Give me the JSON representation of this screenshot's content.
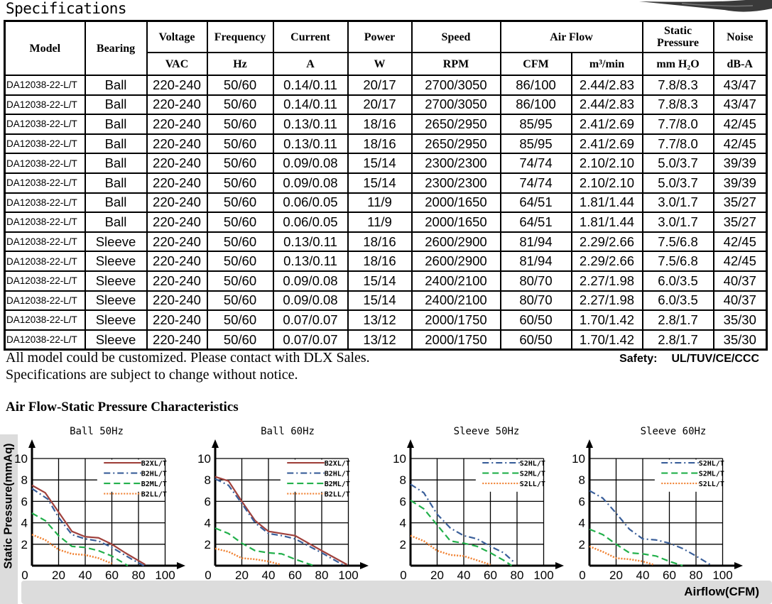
{
  "header": {
    "title": "Specifications"
  },
  "table": {
    "group_headers": [
      "Model",
      "Bearing",
      "Voltage",
      "Frequency",
      "Current",
      "Power",
      "Speed",
      "Air Flow",
      "Static Pressure",
      "Noise"
    ],
    "units": [
      "VAC",
      "Hz",
      "A",
      "W",
      "RPM",
      "CFM",
      "m³/min",
      "mm H₂O",
      "dB-A"
    ],
    "rows": [
      [
        "DA12038-22-L/T",
        "Ball",
        "220-240",
        "50/60",
        "0.14/0.11",
        "20/17",
        "2700/3050",
        "86/100",
        "2.44/2.83",
        "7.8/8.3",
        "43/47"
      ],
      [
        "DA12038-22-L/T",
        "Ball",
        "220-240",
        "50/60",
        "0.14/0.11",
        "20/17",
        "2700/3050",
        "86/100",
        "2.44/2.83",
        "7.8/8.3",
        "43/47"
      ],
      [
        "DA12038-22-L/T",
        "Ball",
        "220-240",
        "50/60",
        "0.13/0.11",
        "18/16",
        "2650/2950",
        "85/95",
        "2.41/2.69",
        "7.7/8.0",
        "42/45"
      ],
      [
        "DA12038-22-L/T",
        "Ball",
        "220-240",
        "50/60",
        "0.13/0.11",
        "18/16",
        "2650/2950",
        "85/95",
        "2.41/2.69",
        "7.7/8.0",
        "42/45"
      ],
      [
        "DA12038-22-L/T",
        "Ball",
        "220-240",
        "50/60",
        "0.09/0.08",
        "15/14",
        "2300/2300",
        "74/74",
        "2.10/2.10",
        "5.0/3.7",
        "39/39"
      ],
      [
        "DA12038-22-L/T",
        "Ball",
        "220-240",
        "50/60",
        "0.09/0.08",
        "15/14",
        "2300/2300",
        "74/74",
        "2.10/2.10",
        "5.0/3.7",
        "39/39"
      ],
      [
        "DA12038-22-L/T",
        "Ball",
        "220-240",
        "50/60",
        "0.06/0.05",
        "11/9",
        "2000/1650",
        "64/51",
        "1.81/1.44",
        "3.0/1.7",
        "35/27"
      ],
      [
        "DA12038-22-L/T",
        "Ball",
        "220-240",
        "50/60",
        "0.06/0.05",
        "11/9",
        "2000/1650",
        "64/51",
        "1.81/1.44",
        "3.0/1.7",
        "35/27"
      ],
      [
        "DA12038-22-L/T",
        "Sleeve",
        "220-240",
        "50/60",
        "0.13/0.11",
        "18/16",
        "2600/2900",
        "81/94",
        "2.29/2.66",
        "7.5/6.8",
        "42/45"
      ],
      [
        "DA12038-22-L/T",
        "Sleeve",
        "220-240",
        "50/60",
        "0.13/0.11",
        "18/16",
        "2600/2900",
        "81/94",
        "2.29/2.66",
        "7.5/6.8",
        "42/45"
      ],
      [
        "DA12038-22-L/T",
        "Sleeve",
        "220-240",
        "50/60",
        "0.09/0.08",
        "15/14",
        "2400/2100",
        "80/70",
        "2.27/1.98",
        "6.0/3.5",
        "40/37"
      ],
      [
        "DA12038-22-L/T",
        "Sleeve",
        "220-240",
        "50/60",
        "0.09/0.08",
        "15/14",
        "2400/2100",
        "80/70",
        "2.27/1.98",
        "6.0/3.5",
        "40/37"
      ],
      [
        "DA12038-22-L/T",
        "Sleeve",
        "220-240",
        "50/60",
        "0.07/0.07",
        "13/12",
        "2000/1750",
        "60/50",
        "1.70/1.42",
        "2.8/1.7",
        "35/30"
      ],
      [
        "DA12038-22-L/T",
        "Sleeve",
        "220-240",
        "50/60",
        "0.07/0.07",
        "13/12",
        "2000/1750",
        "60/50",
        "1.70/1.42",
        "2.8/1.7",
        "35/30"
      ]
    ]
  },
  "notes": {
    "line1": "All model could be customized. Please contact with DLX Sales.",
    "line2": "Specifications are subject to change without notice.",
    "safety_label": "Safety:",
    "safety_value": "UL/TUV/CE/CCC"
  },
  "charts_section": {
    "heading": "Air Flow-Static Pressure Characteristics",
    "ylabel": "Static Pressure(mmAq)",
    "xlabel": "Airflow(CFM)"
  },
  "colors": {
    "XL": "#a0413c",
    "HL": "#3a5f9a",
    "ML": "#22b04b",
    "LL": "#f08030"
  },
  "chart_data": [
    {
      "type": "line",
      "title": "Ball 50Hz",
      "xlim": [
        0,
        100
      ],
      "ylim": [
        0,
        10
      ],
      "xticks": [
        0,
        20,
        40,
        60,
        80,
        100
      ],
      "yticks": [
        2,
        4,
        6,
        8,
        10
      ],
      "grid": true,
      "legend": "top-right",
      "series": [
        {
          "name": "B2XL/T",
          "style": "solid",
          "color": "XL",
          "x": [
            0,
            10,
            20,
            30,
            40,
            50,
            60,
            70,
            85
          ],
          "y": [
            7.5,
            6.8,
            5,
            3.2,
            2.7,
            2.6,
            2,
            1.2,
            0.1
          ]
        },
        {
          "name": "B2HL/T",
          "style": "dashdot",
          "color": "HL",
          "x": [
            0,
            12,
            20,
            30,
            40,
            50,
            60,
            75,
            84
          ],
          "y": [
            7.2,
            6.2,
            4.5,
            2.9,
            2.5,
            2.3,
            1.7,
            0.6,
            0
          ]
        },
        {
          "name": "B2ML/T",
          "style": "dashed",
          "color": "ML",
          "x": [
            0,
            10,
            20,
            30,
            40,
            50,
            60,
            72
          ],
          "y": [
            4.9,
            4.2,
            2.8,
            1.8,
            1.7,
            1.4,
            0.9,
            0
          ]
        },
        {
          "name": "B2LL/T",
          "style": "dotted",
          "color": "LL",
          "x": [
            0,
            10,
            20,
            30,
            40,
            50,
            60
          ],
          "y": [
            2.9,
            2.4,
            1.5,
            1.1,
            1.0,
            0.7,
            0.2
          ]
        }
      ]
    },
    {
      "type": "line",
      "title": "Ball 60Hz",
      "xlim": [
        0,
        100
      ],
      "ylim": [
        0,
        10
      ],
      "xticks": [
        0,
        20,
        40,
        60,
        80,
        100
      ],
      "yticks": [
        2,
        4,
        6,
        8,
        10
      ],
      "grid": true,
      "legend": "top-right",
      "series": [
        {
          "name": "B2XL/T",
          "style": "solid",
          "color": "XL",
          "x": [
            0,
            10,
            20,
            30,
            40,
            50,
            60,
            70,
            80,
            99
          ],
          "y": [
            8.3,
            7.9,
            6,
            4.2,
            3.2,
            3.0,
            2.8,
            2.1,
            1.4,
            0.1
          ]
        },
        {
          "name": "B2HL/T",
          "style": "dashdot",
          "color": "HL",
          "x": [
            0,
            10,
            20,
            30,
            40,
            50,
            60,
            80,
            97
          ],
          "y": [
            8.1,
            7.5,
            5.8,
            4,
            3.0,
            2.8,
            2.5,
            1.2,
            0
          ]
        },
        {
          "name": "B2ML/T",
          "style": "dashed",
          "color": "ML",
          "x": [
            0,
            10,
            20,
            30,
            40,
            50,
            60,
            74
          ],
          "y": [
            3.5,
            3,
            2.1,
            1.4,
            1.2,
            1.1,
            0.6,
            0
          ]
        },
        {
          "name": "B2LL/T",
          "style": "dotted",
          "color": "LL",
          "x": [
            0,
            10,
            20,
            30,
            40,
            49
          ],
          "y": [
            1.6,
            1.3,
            0.7,
            0.6,
            0.4,
            0.1
          ]
        }
      ]
    },
    {
      "type": "line",
      "title": "Sleeve 50Hz",
      "xlim": [
        0,
        100
      ],
      "ylim": [
        0,
        10
      ],
      "xticks": [
        0,
        20,
        40,
        60,
        80,
        100
      ],
      "yticks": [
        2,
        4,
        6,
        8,
        10
      ],
      "grid": true,
      "legend": "top-right",
      "series": [
        {
          "name": "S2HL/T",
          "style": "dashdot",
          "color": "HL",
          "x": [
            0,
            10,
            20,
            30,
            40,
            50,
            60,
            70,
            78
          ],
          "y": [
            7.6,
            6.8,
            4.8,
            3.5,
            2.8,
            2.5,
            1.8,
            1.2,
            0.3
          ]
        },
        {
          "name": "S2ML/T",
          "style": "dashed",
          "color": "ML",
          "x": [
            0,
            10,
            20,
            30,
            40,
            50,
            60,
            70,
            76
          ],
          "y": [
            6.1,
            5.3,
            3.8,
            2.3,
            2.1,
            1.8,
            1.2,
            0.5,
            0
          ]
        },
        {
          "name": "S2LL/T",
          "style": "dotted",
          "color": "LL",
          "x": [
            0,
            10,
            20,
            30,
            40,
            50,
            60
          ],
          "y": [
            2.8,
            2.3,
            1.4,
            1.0,
            0.9,
            0.5,
            0.1
          ]
        }
      ]
    },
    {
      "type": "line",
      "title": "Sleeve 60Hz",
      "xlim": [
        0,
        100
      ],
      "ylim": [
        0,
        10
      ],
      "xticks": [
        0,
        20,
        40,
        60,
        80,
        100
      ],
      "yticks": [
        2,
        4,
        6,
        8,
        10
      ],
      "grid": true,
      "legend": "top-right",
      "series": [
        {
          "name": "S2HL/T",
          "style": "dashdot",
          "color": "HL",
          "x": [
            0,
            10,
            20,
            30,
            40,
            50,
            60,
            70,
            80,
            92
          ],
          "y": [
            7,
            6.3,
            4.9,
            3.4,
            2.5,
            2.4,
            2.1,
            1.6,
            0.9,
            0
          ]
        },
        {
          "name": "S2ML/T",
          "style": "dashed",
          "color": "ML",
          "x": [
            0,
            10,
            20,
            30,
            40,
            50,
            60,
            70
          ],
          "y": [
            3.4,
            2.9,
            2.0,
            1.2,
            1.1,
            0.9,
            0.4,
            0
          ]
        },
        {
          "name": "S2LL/T",
          "style": "dotted",
          "color": "LL",
          "x": [
            0,
            10,
            20,
            30,
            40,
            48
          ],
          "y": [
            1.8,
            1.3,
            0.7,
            0.6,
            0.4,
            0.1
          ]
        }
      ]
    }
  ]
}
